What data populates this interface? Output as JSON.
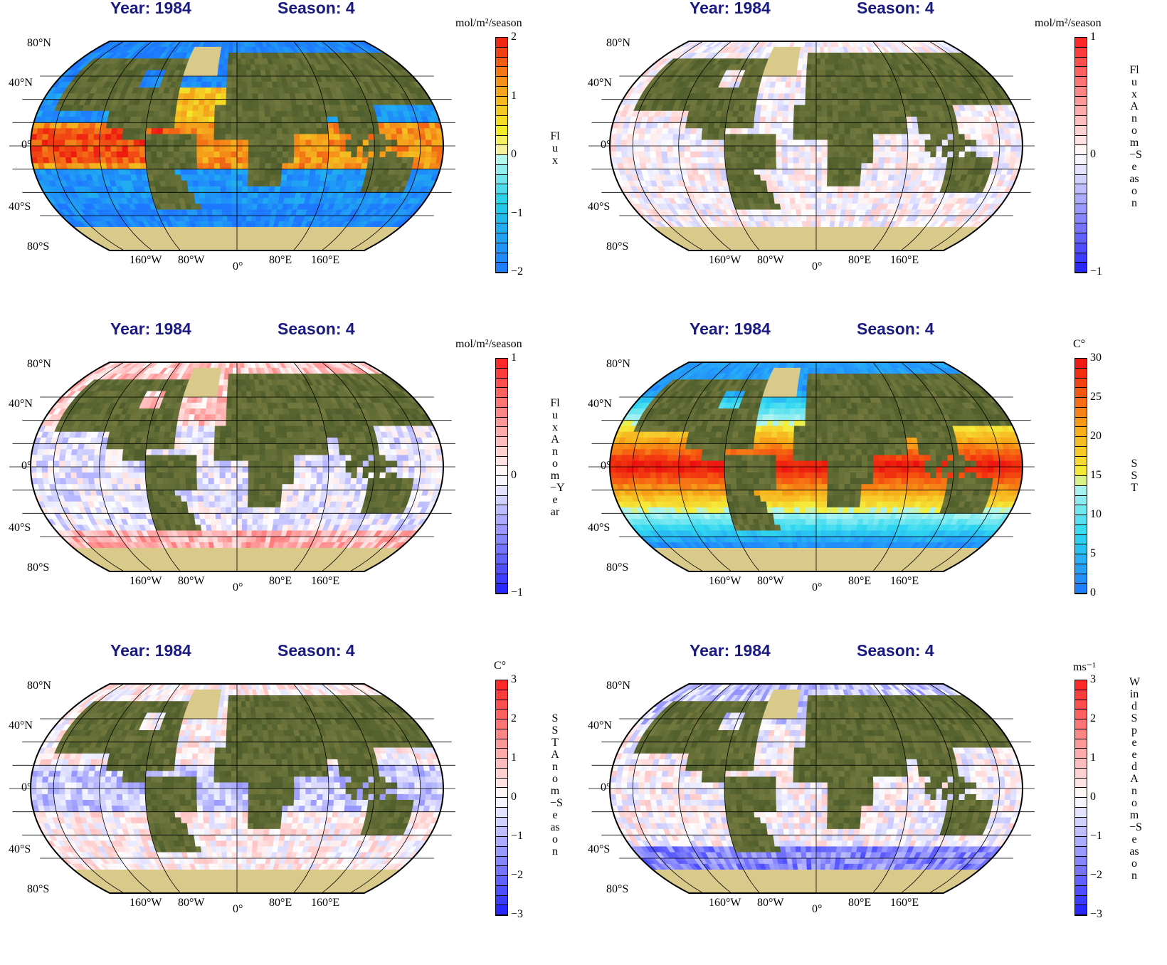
{
  "panels": [
    {
      "year": "Year: 1984",
      "season": "Season: 4",
      "units": "mol/m²/season",
      "label": "Flux",
      "scale": "cyanyellow",
      "ticks": [
        "2",
        "1",
        "0",
        "−1",
        "−2"
      ],
      "min": -2,
      "max": 2
    },
    {
      "year": "Year: 1984",
      "season": "Season: 4",
      "units": "mol/m²/season",
      "label": "Flux Anom−Season",
      "scale": "diverging",
      "ticks": [
        "1",
        "0",
        "−1"
      ],
      "min": -1,
      "max": 1
    },
    {
      "year": "Year: 1984",
      "season": "Season: 4",
      "units": "mol/m²/season",
      "label": "Flux Anom−Year",
      "scale": "diverging",
      "ticks": [
        "1",
        "0",
        "−1"
      ],
      "min": -1,
      "max": 1
    },
    {
      "year": "Year: 1984",
      "season": "Season: 4",
      "units": "C°",
      "label": "SST",
      "scale": "sst",
      "ticks": [
        "30",
        "25",
        "20",
        "15",
        "10",
        "5",
        "0"
      ],
      "min": 0,
      "max": 30
    },
    {
      "year": "Year: 1984",
      "season": "Season: 4",
      "units": "C°",
      "label": "SST Anom−Season",
      "scale": "diverging",
      "ticks": [
        "3",
        "2",
        "1",
        "0",
        "−1",
        "−2",
        "−3"
      ],
      "min": -3,
      "max": 3
    },
    {
      "year": "Year: 1984",
      "season": "Season: 4",
      "units": "ms⁻¹",
      "label": "Wind Speed Anom−Season",
      "scale": "diverging",
      "ticks": [
        "3",
        "2",
        "1",
        "0",
        "−1",
        "−2",
        "−3"
      ],
      "min": -3,
      "max": 3
    }
  ],
  "lat_labels": [
    "80°N",
    "40°N",
    "0°",
    "40°S",
    "80°S"
  ],
  "lon_labels": [
    "160°W",
    "80°W",
    "0°",
    "80°E",
    "160°E"
  ],
  "colors": {
    "title": "#1a1a80",
    "land": "#5d6a33",
    "ice": "#d9c98a",
    "cyan": "#5fd9ef",
    "yellow": "#f2ee2a",
    "warm_red": "#f23a10",
    "cold_blue": "#1e6aff",
    "anom_pos": "#ff2020",
    "anom_neg": "#2020ff"
  }
}
